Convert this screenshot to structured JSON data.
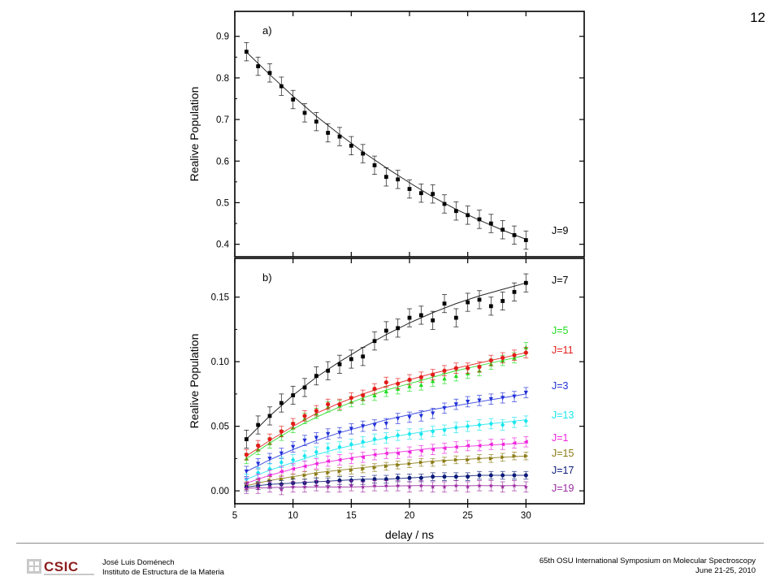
{
  "slide_number": "12",
  "footer": {
    "author": "José Luis Doménech",
    "institute": "Instituto de Estructura de la Materia",
    "conference": "65th OSU International Symposium on Molecular Spectroscopy",
    "dates": "June 21-25, 2010",
    "logo_text": "CSIC"
  },
  "colors": {
    "J9": "#000000",
    "J7": "#000000",
    "J5": "#1fdc1f",
    "J11": "#e41a1a",
    "J3": "#2030d8",
    "J13": "#19e6ee",
    "J1": "#ee22dd",
    "J15": "#8a7a12",
    "J17": "#0b1a78",
    "J19": "#9a2aa0"
  },
  "chart_data": [
    {
      "type": "scatter",
      "panel_label": "a)",
      "ylabel": "Realive Population",
      "xlim": [
        5,
        35
      ],
      "ylim": [
        0.37,
        0.96
      ],
      "yticks": [
        "0.4",
        "0.5",
        "0.6",
        "0.7",
        "0.8",
        "0.9"
      ],
      "yticks_values": [
        0.4,
        0.5,
        0.6,
        0.7,
        0.8,
        0.9
      ],
      "x": [
        6,
        7,
        8,
        9,
        10,
        11,
        12,
        13,
        14,
        15,
        16,
        17,
        18,
        19,
        20,
        21,
        22,
        23,
        24,
        25,
        26,
        27,
        28,
        29,
        30
      ],
      "series": [
        {
          "name": "J=9",
          "marker": "square",
          "values": [
            0.863,
            0.828,
            0.812,
            0.78,
            0.748,
            0.716,
            0.695,
            0.668,
            0.659,
            0.637,
            0.618,
            0.59,
            0.562,
            0.556,
            0.533,
            0.523,
            0.521,
            0.497,
            0.48,
            0.47,
            0.46,
            0.45,
            0.435,
            0.422,
            0.41
          ],
          "error": 0.022,
          "fit": [
            [
              6,
              0.862
            ],
            [
              8,
              0.808
            ],
            [
              10,
              0.756
            ],
            [
              12,
              0.708
            ],
            [
              14,
              0.664
            ],
            [
              16,
              0.622
            ],
            [
              18,
              0.584
            ],
            [
              20,
              0.548
            ],
            [
              22,
              0.514
            ],
            [
              24,
              0.484
            ],
            [
              26,
              0.458
            ],
            [
              28,
              0.434
            ],
            [
              30,
              0.412
            ]
          ]
        }
      ]
    },
    {
      "type": "scatter",
      "panel_label": "b)",
      "xlabel": "delay / ns",
      "ylabel": "Realive Population",
      "xlim": [
        5,
        35
      ],
      "ylim": [
        -0.01,
        0.18
      ],
      "xticks": [
        "5",
        "10",
        "15",
        "20",
        "25",
        "30"
      ],
      "xticks_values": [
        5,
        10,
        15,
        20,
        25,
        30
      ],
      "yticks": [
        "0.00",
        "0.05",
        "0.10",
        "0.15"
      ],
      "yticks_values": [
        0.0,
        0.05,
        0.1,
        0.15
      ],
      "x": [
        6,
        7,
        8,
        9,
        10,
        11,
        12,
        13,
        14,
        15,
        16,
        17,
        18,
        19,
        20,
        21,
        22,
        23,
        24,
        25,
        26,
        27,
        28,
        29,
        30
      ],
      "series": [
        {
          "name": "J=7",
          "marker": "square",
          "values": [
            0.04,
            0.051,
            0.058,
            0.068,
            0.074,
            0.08,
            0.089,
            0.093,
            0.098,
            0.102,
            0.104,
            0.116,
            0.124,
            0.126,
            0.134,
            0.136,
            0.132,
            0.145,
            0.134,
            0.146,
            0.148,
            0.143,
            0.147,
            0.154,
            0.161
          ],
          "error": 0.007,
          "fit": [
            [
              6,
              0.04
            ],
            [
              8,
              0.058
            ],
            [
              10,
              0.074
            ],
            [
              12,
              0.088
            ],
            [
              14,
              0.1
            ],
            [
              16,
              0.111
            ],
            [
              18,
              0.121
            ],
            [
              20,
              0.13
            ],
            [
              22,
              0.138
            ],
            [
              24,
              0.145
            ],
            [
              26,
              0.151
            ],
            [
              28,
              0.156
            ],
            [
              30,
              0.161
            ]
          ]
        },
        {
          "name": "J=5",
          "marker": "triangle-up",
          "values": [
            0.025,
            0.032,
            0.037,
            0.043,
            0.049,
            0.056,
            0.06,
            0.065,
            0.066,
            0.069,
            0.071,
            0.074,
            0.077,
            0.079,
            0.081,
            0.082,
            0.085,
            0.087,
            0.089,
            0.091,
            0.093,
            0.098,
            0.101,
            0.103,
            0.111
          ],
          "error": 0.004,
          "fit": [
            [
              6,
              0.025
            ],
            [
              8,
              0.037
            ],
            [
              10,
              0.048
            ],
            [
              12,
              0.057
            ],
            [
              14,
              0.065
            ],
            [
              16,
              0.072
            ],
            [
              18,
              0.078
            ],
            [
              20,
              0.083
            ],
            [
              22,
              0.088
            ],
            [
              24,
              0.093
            ],
            [
              26,
              0.097
            ],
            [
              28,
              0.101
            ],
            [
              30,
              0.105
            ]
          ]
        },
        {
          "name": "J=11",
          "marker": "circle",
          "values": [
            0.028,
            0.035,
            0.04,
            0.046,
            0.052,
            0.058,
            0.062,
            0.067,
            0.067,
            0.072,
            0.074,
            0.079,
            0.084,
            0.083,
            0.086,
            0.088,
            0.09,
            0.093,
            0.095,
            0.095,
            0.096,
            0.101,
            0.103,
            0.105,
            0.107
          ],
          "error": 0.004,
          "fit": [
            [
              6,
              0.027
            ],
            [
              8,
              0.039
            ],
            [
              10,
              0.05
            ],
            [
              12,
              0.06
            ],
            [
              14,
              0.068
            ],
            [
              16,
              0.075
            ],
            [
              18,
              0.081
            ],
            [
              20,
              0.086
            ],
            [
              22,
              0.091
            ],
            [
              24,
              0.095
            ],
            [
              26,
              0.099
            ],
            [
              28,
              0.103
            ],
            [
              30,
              0.107
            ]
          ]
        },
        {
          "name": "J=3",
          "marker": "triangle-down",
          "values": [
            0.015,
            0.021,
            0.025,
            0.029,
            0.034,
            0.039,
            0.041,
            0.044,
            0.045,
            0.048,
            0.05,
            0.051,
            0.052,
            0.056,
            0.057,
            0.058,
            0.06,
            0.064,
            0.067,
            0.069,
            0.07,
            0.071,
            0.072,
            0.073,
            0.076
          ],
          "error": 0.004,
          "fit": [
            [
              6,
              0.015
            ],
            [
              8,
              0.024
            ],
            [
              10,
              0.032
            ],
            [
              12,
              0.039
            ],
            [
              14,
              0.045
            ],
            [
              16,
              0.05
            ],
            [
              18,
              0.055
            ],
            [
              20,
              0.059
            ],
            [
              22,
              0.063
            ],
            [
              24,
              0.066
            ],
            [
              26,
              0.069
            ],
            [
              28,
              0.072
            ],
            [
              30,
              0.075
            ]
          ]
        },
        {
          "name": "J=13",
          "marker": "diamond",
          "values": [
            0.009,
            0.014,
            0.017,
            0.022,
            0.024,
            0.027,
            0.03,
            0.033,
            0.034,
            0.036,
            0.038,
            0.04,
            0.041,
            0.043,
            0.044,
            0.044,
            0.046,
            0.047,
            0.049,
            0.05,
            0.051,
            0.052,
            0.051,
            0.053,
            0.054
          ],
          "error": 0.004,
          "fit": [
            [
              6,
              0.009
            ],
            [
              8,
              0.016
            ],
            [
              10,
              0.022
            ],
            [
              12,
              0.028
            ],
            [
              14,
              0.033
            ],
            [
              16,
              0.037
            ],
            [
              18,
              0.041
            ],
            [
              20,
              0.044
            ],
            [
              22,
              0.047
            ],
            [
              24,
              0.049
            ],
            [
              26,
              0.051
            ],
            [
              28,
              0.053
            ],
            [
              30,
              0.055
            ]
          ]
        },
        {
          "name": "J=1",
          "marker": "triangle-left",
          "values": [
            0.006,
            0.009,
            0.012,
            0.015,
            0.017,
            0.019,
            0.021,
            0.023,
            0.024,
            0.025,
            0.026,
            0.028,
            0.029,
            0.029,
            0.03,
            0.031,
            0.032,
            0.033,
            0.034,
            0.035,
            0.035,
            0.036,
            0.036,
            0.037,
            0.038
          ],
          "error": 0.004,
          "fit": [
            [
              6,
              0.006
            ],
            [
              8,
              0.012
            ],
            [
              10,
              0.017
            ],
            [
              12,
              0.021
            ],
            [
              14,
              0.024
            ],
            [
              16,
              0.027
            ],
            [
              18,
              0.029
            ],
            [
              20,
              0.031
            ],
            [
              22,
              0.033
            ],
            [
              24,
              0.034
            ],
            [
              26,
              0.035
            ],
            [
              28,
              0.036
            ],
            [
              30,
              0.037
            ]
          ]
        },
        {
          "name": "J=15",
          "marker": "triangle-right",
          "values": [
            0.004,
            0.006,
            0.008,
            0.009,
            0.01,
            0.012,
            0.013,
            0.014,
            0.015,
            0.016,
            0.017,
            0.018,
            0.019,
            0.02,
            0.021,
            0.022,
            0.022,
            0.023,
            0.024,
            0.024,
            0.025,
            0.025,
            0.026,
            0.027,
            0.027
          ],
          "error": 0.003,
          "fit": [
            [
              6,
              0.004
            ],
            [
              8,
              0.008
            ],
            [
              10,
              0.011
            ],
            [
              12,
              0.014
            ],
            [
              14,
              0.016
            ],
            [
              16,
              0.018
            ],
            [
              18,
              0.02
            ],
            [
              20,
              0.021
            ],
            [
              22,
              0.023
            ],
            [
              24,
              0.024
            ],
            [
              26,
              0.025
            ],
            [
              28,
              0.026
            ],
            [
              30,
              0.027
            ]
          ]
        },
        {
          "name": "J=17",
          "marker": "hexagon",
          "values": [
            0.003,
            0.004,
            0.005,
            0.005,
            0.006,
            0.006,
            0.007,
            0.007,
            0.008,
            0.008,
            0.008,
            0.009,
            0.009,
            0.01,
            0.01,
            0.01,
            0.011,
            0.011,
            0.011,
            0.011,
            0.012,
            0.012,
            0.012,
            0.012,
            0.012
          ],
          "error": 0.003,
          "fit": [
            [
              6,
              0.003
            ],
            [
              8,
              0.005
            ],
            [
              10,
              0.006
            ],
            [
              12,
              0.007
            ],
            [
              14,
              0.008
            ],
            [
              16,
              0.009
            ],
            [
              18,
              0.009
            ],
            [
              20,
              0.01
            ],
            [
              22,
              0.011
            ],
            [
              24,
              0.011
            ],
            [
              26,
              0.012
            ],
            [
              28,
              0.012
            ],
            [
              30,
              0.012
            ]
          ]
        },
        {
          "name": "J=19",
          "marker": "star",
          "values": [
            0.002,
            0.002,
            0.003,
            0.001,
            0.003,
            0.003,
            0.004,
            0.003,
            0.003,
            0.004,
            0.003,
            0.004,
            0.004,
            0.004,
            0.003,
            0.004,
            0.003,
            0.003,
            0.004,
            0.003,
            0.004,
            0.004,
            0.003,
            0.004,
            0.003
          ],
          "error": 0.004,
          "fit": [
            [
              6,
              0.002
            ],
            [
              10,
              0.003
            ],
            [
              15,
              0.003
            ],
            [
              20,
              0.004
            ],
            [
              25,
              0.004
            ],
            [
              30,
              0.004
            ]
          ]
        }
      ]
    }
  ]
}
